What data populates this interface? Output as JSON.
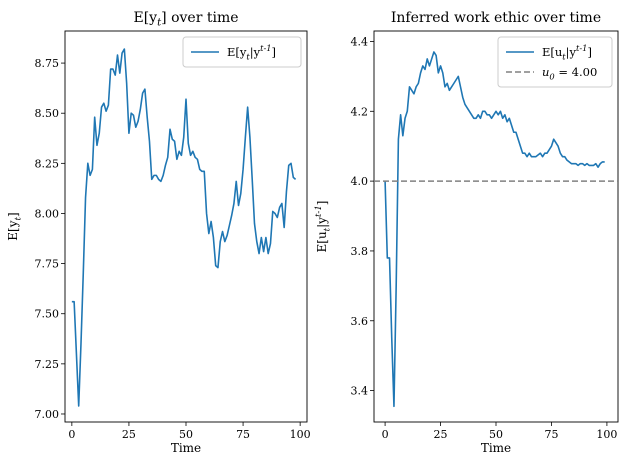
{
  "chart_data": [
    {
      "type": "line",
      "title": "E[y_t] over time",
      "xlabel": "Time",
      "ylabel": "E[y_t]",
      "xlim": [
        -3,
        103
      ],
      "ylim": [
        6.96,
        8.91
      ],
      "xticks": [
        0,
        25,
        50,
        75,
        100
      ],
      "yticks": [
        7.0,
        7.25,
        7.5,
        7.75,
        8.0,
        8.25,
        8.5,
        8.75
      ],
      "xtick_labels": [
        "0",
        "25",
        "50",
        "75",
        "100"
      ],
      "ytick_labels": [
        "7.00",
        "7.25",
        "7.50",
        "7.75",
        "8.00",
        "8.25",
        "8.50",
        "8.75"
      ],
      "grid": false,
      "legend_position": "top-right",
      "series": [
        {
          "name": "E[y_t|y^{t-1}]",
          "color": "#1f77b4",
          "x": [
            0,
            1,
            2,
            3,
            4,
            5,
            6,
            7,
            8,
            9,
            10,
            11,
            12,
            13,
            14,
            15,
            16,
            17,
            18,
            19,
            20,
            21,
            22,
            23,
            24,
            25,
            26,
            27,
            28,
            29,
            30,
            31,
            32,
            33,
            34,
            35,
            36,
            37,
            38,
            39,
            40,
            41,
            42,
            43,
            44,
            45,
            46,
            47,
            48,
            49,
            50,
            51,
            52,
            53,
            54,
            55,
            56,
            57,
            58,
            59,
            60,
            61,
            62,
            63,
            64,
            65,
            66,
            67,
            68,
            69,
            70,
            71,
            72,
            73,
            74,
            75,
            76,
            77,
            78,
            79,
            80,
            81,
            82,
            83,
            84,
            85,
            86,
            87,
            88,
            89,
            90,
            91,
            92,
            93,
            94,
            95,
            96,
            97,
            98
          ],
          "y": [
            7.56,
            7.56,
            7.3,
            7.04,
            7.35,
            7.7,
            8.08,
            8.25,
            8.19,
            8.22,
            8.48,
            8.34,
            8.4,
            8.53,
            8.55,
            8.51,
            8.54,
            8.72,
            8.72,
            8.69,
            8.79,
            8.7,
            8.8,
            8.82,
            8.65,
            8.4,
            8.5,
            8.49,
            8.43,
            8.46,
            8.52,
            8.6,
            8.62,
            8.48,
            8.36,
            8.17,
            8.19,
            8.19,
            8.17,
            8.16,
            8.19,
            8.24,
            8.28,
            8.42,
            8.37,
            8.36,
            8.27,
            8.31,
            8.29,
            8.38,
            8.57,
            8.35,
            8.29,
            8.31,
            8.28,
            8.27,
            8.22,
            8.21,
            8.21,
            8.0,
            7.9,
            7.96,
            7.88,
            7.74,
            7.73,
            7.86,
            7.91,
            7.86,
            7.89,
            7.94,
            7.99,
            8.05,
            8.16,
            8.04,
            8.1,
            8.22,
            8.38,
            8.53,
            8.38,
            8.17,
            7.95,
            7.86,
            7.8,
            7.88,
            7.81,
            7.88,
            7.8,
            7.85,
            8.01,
            8.0,
            7.98,
            8.03,
            8.05,
            7.93,
            8.11,
            8.24,
            8.25,
            8.18,
            8.17
          ]
        }
      ]
    },
    {
      "type": "line",
      "title": "Inferred work ethic over time",
      "xlabel": "Time",
      "ylabel": "E[u_t|y^{t-1}]",
      "xlim": [
        -5,
        105
      ],
      "ylim": [
        3.31,
        4.43
      ],
      "xticks": [
        0,
        25,
        50,
        75,
        100
      ],
      "yticks": [
        3.4,
        3.6,
        3.8,
        4.0,
        4.2,
        4.4
      ],
      "xtick_labels": [
        "0",
        "25",
        "50",
        "75",
        "100"
      ],
      "ytick_labels": [
        "3.4",
        "3.6",
        "3.8",
        "4.0",
        "4.2",
        "4.4"
      ],
      "grid": false,
      "legend_position": "top-right",
      "series": [
        {
          "name": "E[u_t|y^{t-1}]",
          "color": "#1f77b4",
          "x": [
            0,
            1,
            2,
            3,
            4,
            5,
            6,
            7,
            8,
            9,
            10,
            11,
            12,
            13,
            14,
            15,
            16,
            17,
            18,
            19,
            20,
            21,
            22,
            23,
            24,
            25,
            26,
            27,
            28,
            29,
            30,
            31,
            32,
            33,
            34,
            35,
            36,
            37,
            38,
            39,
            40,
            41,
            42,
            43,
            44,
            45,
            46,
            47,
            48,
            49,
            50,
            51,
            52,
            53,
            54,
            55,
            56,
            57,
            58,
            59,
            60,
            61,
            62,
            63,
            64,
            65,
            66,
            67,
            68,
            69,
            70,
            71,
            72,
            73,
            74,
            75,
            76,
            77,
            78,
            79,
            80,
            81,
            82,
            83,
            84,
            85,
            86,
            87,
            88,
            89,
            90,
            91,
            92,
            93,
            94,
            95,
            96,
            97,
            98,
            99
          ],
          "y": [
            4.0,
            3.78,
            3.78,
            3.55,
            3.355,
            3.7,
            4.12,
            4.19,
            4.13,
            4.18,
            4.2,
            4.27,
            4.26,
            4.25,
            4.27,
            4.28,
            4.31,
            4.33,
            4.32,
            4.35,
            4.33,
            4.35,
            4.37,
            4.36,
            4.31,
            4.33,
            4.31,
            4.27,
            4.28,
            4.26,
            4.27,
            4.28,
            4.29,
            4.3,
            4.27,
            4.24,
            4.22,
            4.21,
            4.2,
            4.19,
            4.18,
            4.18,
            4.19,
            4.18,
            4.2,
            4.2,
            4.19,
            4.19,
            4.18,
            4.19,
            4.2,
            4.19,
            4.2,
            4.18,
            4.19,
            4.17,
            4.18,
            4.16,
            4.14,
            4.14,
            4.12,
            4.1,
            4.08,
            4.08,
            4.07,
            4.08,
            4.07,
            4.07,
            4.07,
            4.075,
            4.08,
            4.07,
            4.08,
            4.08,
            4.09,
            4.1,
            4.12,
            4.11,
            4.1,
            4.08,
            4.07,
            4.07,
            4.06,
            4.055,
            4.05,
            4.05,
            4.05,
            4.045,
            4.05,
            4.05,
            4.045,
            4.05,
            4.045,
            4.045,
            4.045,
            4.05,
            4.04,
            4.05,
            4.055,
            4.055
          ]
        },
        {
          "name": "u_0 = 4.00",
          "color": "#808080",
          "style": "dashed",
          "hline": 4.0
        }
      ]
    }
  ]
}
